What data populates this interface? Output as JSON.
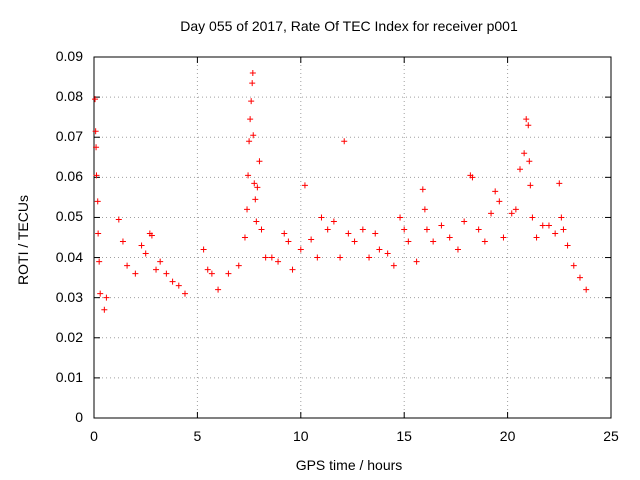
{
  "chart_data": {
    "type": "scatter",
    "title": "Day 055 of 2017, Rate Of TEC Index for receiver p001",
    "xlabel": "GPS time / hours",
    "ylabel": "ROTI / TECUs",
    "xlim": [
      0,
      25
    ],
    "ylim": [
      0,
      0.09
    ],
    "xticks": [
      0,
      5,
      10,
      15,
      20,
      25
    ],
    "yticks": [
      0,
      0.01,
      0.02,
      0.03,
      0.04,
      0.05,
      0.06,
      0.07,
      0.08,
      0.09
    ],
    "ytick_labels": [
      "0",
      "0.01",
      "0.02",
      "0.03",
      "0.04",
      "0.05",
      "0.06",
      "0.07",
      "0.08",
      "0.09"
    ],
    "xtick_labels": [
      "0",
      "5",
      "10",
      "15",
      "20",
      "25"
    ],
    "marker": "+",
    "color": "#ff0000",
    "grid": true,
    "series": [
      {
        "name": "ROTI",
        "points": [
          [
            0.05,
            0.0795
          ],
          [
            0.08,
            0.0715
          ],
          [
            0.1,
            0.0675
          ],
          [
            0.12,
            0.0605
          ],
          [
            0.18,
            0.054
          ],
          [
            0.2,
            0.046
          ],
          [
            0.25,
            0.039
          ],
          [
            0.3,
            0.031
          ],
          [
            0.5,
            0.027
          ],
          [
            0.6,
            0.03
          ],
          [
            1.2,
            0.0495
          ],
          [
            1.4,
            0.044
          ],
          [
            1.6,
            0.038
          ],
          [
            2.0,
            0.036
          ],
          [
            2.3,
            0.043
          ],
          [
            2.5,
            0.041
          ],
          [
            2.7,
            0.046
          ],
          [
            2.8,
            0.0455
          ],
          [
            3.0,
            0.037
          ],
          [
            3.2,
            0.039
          ],
          [
            3.5,
            0.036
          ],
          [
            3.8,
            0.034
          ],
          [
            4.1,
            0.033
          ],
          [
            4.4,
            0.031
          ],
          [
            5.3,
            0.042
          ],
          [
            5.5,
            0.037
          ],
          [
            5.7,
            0.036
          ],
          [
            6.0,
            0.032
          ],
          [
            6.5,
            0.036
          ],
          [
            7.0,
            0.038
          ],
          [
            7.3,
            0.045
          ],
          [
            7.4,
            0.052
          ],
          [
            7.45,
            0.0605
          ],
          [
            7.5,
            0.069
          ],
          [
            7.55,
            0.0745
          ],
          [
            7.6,
            0.079
          ],
          [
            7.65,
            0.0835
          ],
          [
            7.68,
            0.086
          ],
          [
            7.7,
            0.0705
          ],
          [
            7.75,
            0.0585
          ],
          [
            7.8,
            0.0545
          ],
          [
            7.85,
            0.049
          ],
          [
            7.9,
            0.0575
          ],
          [
            8.0,
            0.064
          ],
          [
            8.1,
            0.047
          ],
          [
            8.3,
            0.04
          ],
          [
            8.6,
            0.04
          ],
          [
            8.9,
            0.039
          ],
          [
            9.2,
            0.046
          ],
          [
            9.4,
            0.044
          ],
          [
            9.6,
            0.037
          ],
          [
            10.0,
            0.042
          ],
          [
            10.2,
            0.058
          ],
          [
            10.5,
            0.0445
          ],
          [
            10.8,
            0.04
          ],
          [
            11.0,
            0.05
          ],
          [
            11.3,
            0.047
          ],
          [
            11.6,
            0.049
          ],
          [
            11.9,
            0.04
          ],
          [
            12.1,
            0.069
          ],
          [
            12.3,
            0.046
          ],
          [
            12.6,
            0.044
          ],
          [
            13.0,
            0.047
          ],
          [
            13.3,
            0.04
          ],
          [
            13.6,
            0.046
          ],
          [
            13.8,
            0.042
          ],
          [
            14.2,
            0.041
          ],
          [
            14.5,
            0.038
          ],
          [
            14.8,
            0.05
          ],
          [
            15.0,
            0.047
          ],
          [
            15.2,
            0.044
          ],
          [
            15.6,
            0.039
          ],
          [
            15.9,
            0.057
          ],
          [
            16.0,
            0.052
          ],
          [
            16.1,
            0.047
          ],
          [
            16.4,
            0.044
          ],
          [
            16.8,
            0.048
          ],
          [
            17.2,
            0.045
          ],
          [
            17.6,
            0.042
          ],
          [
            17.9,
            0.049
          ],
          [
            18.2,
            0.0605
          ],
          [
            18.3,
            0.06
          ],
          [
            18.6,
            0.047
          ],
          [
            18.9,
            0.044
          ],
          [
            19.2,
            0.051
          ],
          [
            19.4,
            0.0565
          ],
          [
            19.6,
            0.054
          ],
          [
            19.8,
            0.045
          ],
          [
            20.2,
            0.051
          ],
          [
            20.4,
            0.052
          ],
          [
            20.6,
            0.062
          ],
          [
            20.8,
            0.066
          ],
          [
            20.9,
            0.0745
          ],
          [
            21.0,
            0.073
          ],
          [
            21.05,
            0.064
          ],
          [
            21.1,
            0.058
          ],
          [
            21.2,
            0.05
          ],
          [
            21.4,
            0.045
          ],
          [
            21.7,
            0.048
          ],
          [
            22.0,
            0.048
          ],
          [
            22.3,
            0.046
          ],
          [
            22.5,
            0.0585
          ],
          [
            22.6,
            0.05
          ],
          [
            22.7,
            0.047
          ],
          [
            22.9,
            0.043
          ],
          [
            23.2,
            0.038
          ],
          [
            23.5,
            0.035
          ],
          [
            23.8,
            0.032
          ]
        ]
      }
    ]
  }
}
